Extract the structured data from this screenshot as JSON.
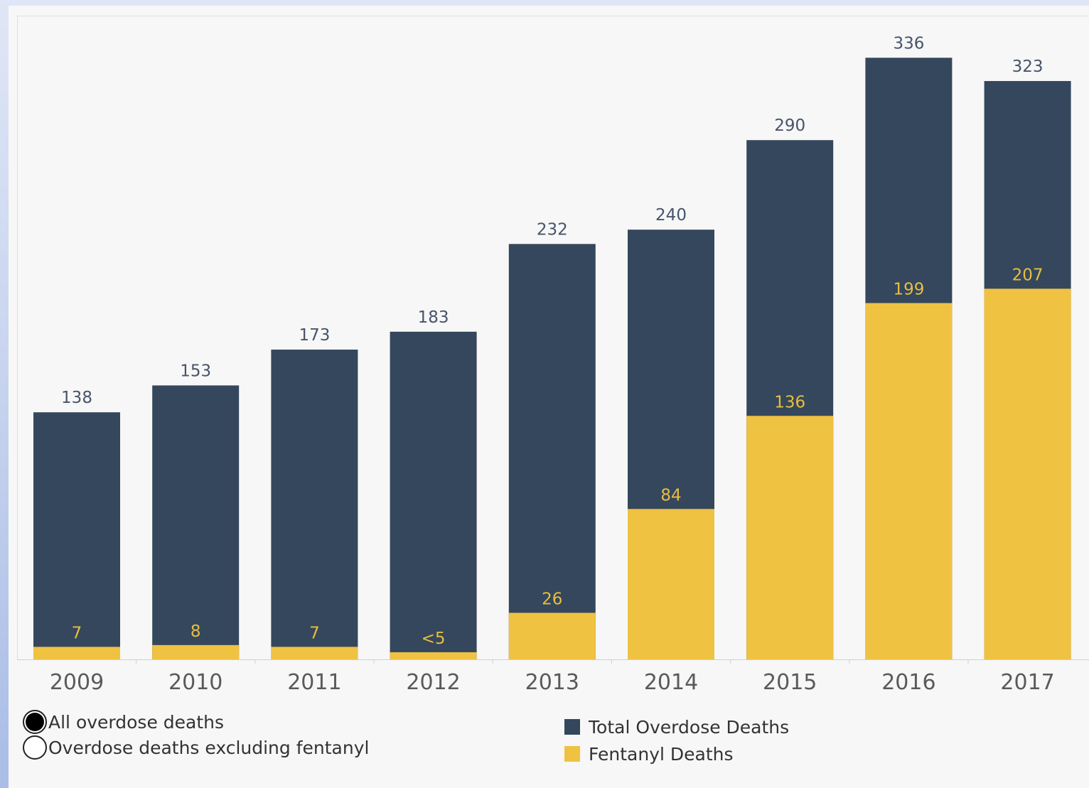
{
  "chart_data": {
    "type": "bar",
    "stacked": "overlay",
    "categories": [
      "2009",
      "2010",
      "2011",
      "2012",
      "2013",
      "2014",
      "2015",
      "2016",
      "2017"
    ],
    "series": [
      {
        "name": "Total Overdose Deaths",
        "color": "#34475c",
        "values": [
          138,
          153,
          173,
          183,
          232,
          240,
          290,
          336,
          323
        ],
        "labels": [
          "138",
          "153",
          "173",
          "183",
          "232",
          "240",
          "290",
          "336",
          "323"
        ]
      },
      {
        "name": "Fentanyl Deaths",
        "color": "#f0c242",
        "values": [
          7,
          8,
          7,
          4,
          26,
          84,
          136,
          199,
          207
        ],
        "labels": [
          "7",
          "8",
          "7",
          "<5",
          "26",
          "84",
          "136",
          "199",
          "207"
        ]
      }
    ],
    "ylim": [
      0,
      360
    ],
    "grid": false,
    "legend_position": "bottom"
  },
  "controls": {
    "options": [
      {
        "label": "All overdose deaths",
        "selected": true
      },
      {
        "label": "Overdose deaths excluding fentanyl",
        "selected": false
      }
    ]
  },
  "legend": {
    "items": [
      {
        "label": "Total Overdose Deaths",
        "color": "#34475c"
      },
      {
        "label": "Fentanyl Deaths",
        "color": "#f0c242"
      }
    ]
  }
}
